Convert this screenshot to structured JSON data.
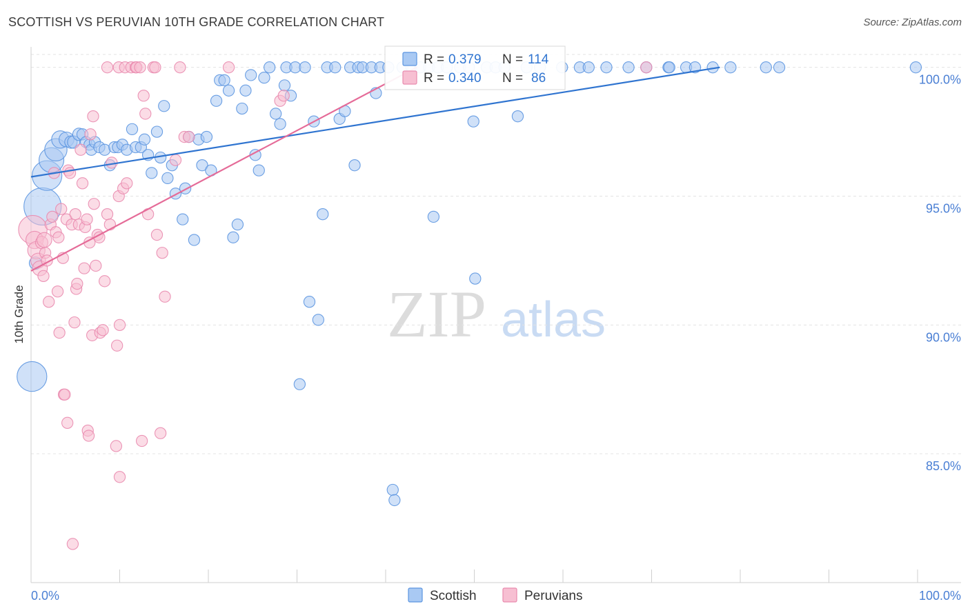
{
  "header": {
    "title": "SCOTTISH VS PERUVIAN 10TH GRADE CORRELATION CHART",
    "source": "Source: ZipAtlas.com"
  },
  "watermark": {
    "zip": "ZIP",
    "atlas": "atlas"
  },
  "legend_box": {
    "rows": [
      {
        "r_label": "R =",
        "r_value": "0.379",
        "n_label": "N =",
        "n_value": "114",
        "color": "#6fa8f0"
      },
      {
        "r_label": "R =",
        "r_value": "0.340",
        "n_label": "N =",
        "n_value": "86",
        "color": "#f4a0bd"
      }
    ]
  },
  "bottom_legend": [
    {
      "label": "Scottish",
      "color": "#6fa8f0"
    },
    {
      "label": "Peruvians",
      "color": "#f4a0bd"
    }
  ],
  "colors": {
    "scottish_fill": "#a9c9f3",
    "scottish_stroke": "#5b95e0",
    "scottish_line": "#2f74d0",
    "peruvian_fill": "#f7bfd2",
    "peruvian_stroke": "#e98aae",
    "peruvian_line": "#e56b98",
    "tick_text": "#4a7fd4",
    "grid": "#e3e3e3"
  },
  "chart_data": {
    "type": "scatter",
    "title": "SCOTTISH VS PERUVIAN 10TH GRADE CORRELATION CHART",
    "xlabel": "",
    "ylabel": "10th Grade",
    "xlim": [
      0,
      100
    ],
    "ylim": [
      80.0,
      100.5
    ],
    "x_tick_labels": [
      "0.0%",
      "100.0%"
    ],
    "y_ticks": [
      85,
      90,
      95,
      100
    ],
    "y_tick_labels": [
      "85.0%",
      "90.0%",
      "95.0%",
      "100.0%"
    ],
    "grid": true,
    "legend_position": "top-center",
    "series": [
      {
        "name": "Scottish",
        "r": 0.379,
        "n": 114,
        "trend": {
          "x": [
            0,
            77.7
          ],
          "y": [
            95.75,
            100.0
          ]
        },
        "points": [
          [
            0.1,
            88.0,
            2.4
          ],
          [
            1.3,
            94.6,
            3.0
          ],
          [
            1.8,
            95.8,
            2.4
          ],
          [
            2.3,
            96.4,
            2.0
          ],
          [
            2.8,
            96.8,
            1.8
          ],
          [
            3.3,
            97.2,
            1.4
          ],
          [
            4.0,
            97.2,
            1.2
          ],
          [
            4.5,
            97.1,
            1.0
          ],
          [
            4.8,
            97.1,
            1.0
          ],
          [
            5.4,
            97.4,
            1.0
          ],
          [
            5.8,
            97.4,
            0.9
          ],
          [
            6.2,
            97.1,
            0.9
          ],
          [
            6.6,
            97.0,
            0.9
          ],
          [
            6.8,
            96.8,
            0.9
          ],
          [
            7.2,
            97.1,
            0.9
          ],
          [
            7.7,
            96.9,
            0.9
          ],
          [
            8.3,
            96.8,
            0.9
          ],
          [
            8.9,
            96.2,
            0.9
          ],
          [
            9.4,
            96.9,
            0.9
          ],
          [
            9.8,
            96.9,
            0.9
          ],
          [
            10.3,
            97.0,
            0.9
          ],
          [
            10.8,
            96.8,
            0.9
          ],
          [
            11.4,
            97.6,
            0.9
          ],
          [
            11.8,
            96.9,
            0.9
          ],
          [
            12.4,
            96.9,
            0.9
          ],
          [
            12.8,
            97.2,
            0.9
          ],
          [
            13.2,
            96.6,
            0.9
          ],
          [
            13.6,
            95.9,
            0.9
          ],
          [
            14.2,
            97.5,
            0.9
          ],
          [
            14.6,
            96.5,
            0.9
          ],
          [
            15.0,
            98.5,
            0.9
          ],
          [
            15.4,
            95.7,
            0.9
          ],
          [
            15.9,
            96.2,
            0.9
          ],
          [
            16.3,
            95.1,
            0.9
          ],
          [
            17.1,
            94.1,
            0.9
          ],
          [
            17.4,
            95.3,
            0.9
          ],
          [
            17.8,
            97.3,
            0.9
          ],
          [
            18.4,
            93.3,
            0.9
          ],
          [
            18.9,
            97.2,
            0.9
          ],
          [
            19.3,
            96.2,
            0.9
          ],
          [
            19.8,
            97.3,
            0.9
          ],
          [
            20.3,
            96.0,
            0.9
          ],
          [
            20.9,
            98.7,
            0.9
          ],
          [
            21.3,
            99.5,
            0.9
          ],
          [
            21.8,
            99.5,
            0.9
          ],
          [
            22.3,
            99.1,
            0.9
          ],
          [
            22.8,
            93.4,
            0.9
          ],
          [
            23.3,
            93.9,
            0.9
          ],
          [
            23.8,
            98.4,
            0.9
          ],
          [
            24.2,
            99.1,
            0.9
          ],
          [
            24.8,
            99.7,
            0.9
          ],
          [
            25.3,
            96.6,
            0.9
          ],
          [
            25.7,
            96.0,
            0.9
          ],
          [
            26.3,
            99.6,
            0.9
          ],
          [
            26.9,
            100.0,
            0.9
          ],
          [
            27.6,
            98.2,
            0.9
          ],
          [
            28.1,
            97.8,
            0.9
          ],
          [
            28.6,
            99.3,
            0.9
          ],
          [
            28.8,
            100.0,
            0.9
          ],
          [
            29.3,
            98.9,
            0.9
          ],
          [
            29.8,
            100.0,
            0.9
          ],
          [
            30.3,
            87.7,
            0.9
          ],
          [
            30.9,
            100.0,
            0.9
          ],
          [
            31.4,
            90.9,
            0.9
          ],
          [
            31.9,
            97.9,
            0.9
          ],
          [
            32.4,
            90.2,
            0.9
          ],
          [
            32.9,
            94.3,
            0.9
          ],
          [
            33.4,
            100.0,
            0.9
          ],
          [
            34.3,
            100.0,
            0.9
          ],
          [
            34.8,
            98.0,
            0.9
          ],
          [
            35.4,
            98.3,
            0.9
          ],
          [
            36.0,
            100.0,
            0.9
          ],
          [
            36.5,
            96.2,
            0.9
          ],
          [
            36.9,
            100.0,
            0.9
          ],
          [
            37.4,
            100.0,
            0.9
          ],
          [
            38.4,
            100.0,
            0.9
          ],
          [
            38.9,
            99.0,
            0.9
          ],
          [
            39.4,
            100.0,
            0.9
          ],
          [
            40.3,
            100.0,
            0.9
          ],
          [
            40.8,
            83.6,
            0.9
          ],
          [
            41.0,
            83.2,
            0.9
          ],
          [
            41.9,
            100.0,
            0.9
          ],
          [
            42.9,
            100.0,
            0.9
          ],
          [
            43.9,
            100.0,
            0.9
          ],
          [
            44.9,
            100.0,
            0.9
          ],
          [
            45.4,
            94.2,
            0.9
          ],
          [
            45.9,
            100.0,
            0.9
          ],
          [
            46.9,
            100.0,
            0.9
          ],
          [
            48.4,
            100.0,
            0.9
          ],
          [
            49.4,
            100.0,
            0.9
          ],
          [
            49.9,
            97.9,
            0.9
          ],
          [
            50.1,
            91.8,
            0.9
          ],
          [
            51.4,
            100.0,
            0.9
          ],
          [
            52.4,
            100.0,
            0.9
          ],
          [
            53.4,
            100.0,
            0.9
          ],
          [
            54.9,
            98.1,
            0.9
          ],
          [
            55.9,
            100.0,
            0.9
          ],
          [
            57.4,
            100.0,
            0.9
          ],
          [
            59.9,
            100.0,
            0.9
          ],
          [
            61.9,
            100.0,
            0.9
          ],
          [
            62.9,
            100.0,
            0.9
          ],
          [
            64.9,
            100.0,
            0.9
          ],
          [
            67.4,
            100.0,
            0.9
          ],
          [
            69.4,
            100.0,
            0.9
          ],
          [
            71.9,
            100.0,
            0.9
          ],
          [
            72.0,
            100.0,
            0.9
          ],
          [
            73.9,
            100.0,
            0.9
          ],
          [
            74.9,
            100.0,
            0.9
          ],
          [
            76.9,
            100.0,
            0.9
          ],
          [
            78.9,
            100.0,
            0.9
          ],
          [
            82.9,
            100.0,
            0.9
          ],
          [
            84.4,
            100.0,
            0.9
          ],
          [
            99.8,
            100.0,
            0.9
          ],
          [
            0.5,
            92.4,
            1.0
          ]
        ]
      },
      {
        "name": "Peruvians",
        "r": 0.34,
        "n": 86,
        "trend": {
          "x": [
            0,
            43.5
          ],
          "y": [
            92.1,
            100.0
          ]
        },
        "points": [
          [
            0.2,
            93.7,
            2.3
          ],
          [
            0.4,
            93.3,
            1.4
          ],
          [
            0.6,
            92.9,
            1.4
          ],
          [
            0.8,
            92.5,
            1.2
          ],
          [
            1.0,
            92.2,
            1.2
          ],
          [
            1.2,
            93.2,
            1.0
          ],
          [
            1.4,
            91.9,
            0.9
          ],
          [
            1.6,
            92.8,
            0.9
          ],
          [
            1.8,
            92.5,
            0.9
          ],
          [
            2.0,
            90.9,
            0.9
          ],
          [
            2.2,
            93.9,
            0.9
          ],
          [
            2.4,
            94.2,
            0.9
          ],
          [
            2.8,
            93.6,
            0.9
          ],
          [
            3.0,
            91.3,
            0.9
          ],
          [
            3.1,
            93.4,
            0.9
          ],
          [
            3.2,
            89.7,
            0.9
          ],
          [
            3.4,
            94.5,
            0.9
          ],
          [
            3.6,
            92.6,
            0.9
          ],
          [
            3.7,
            87.3,
            0.9
          ],
          [
            3.8,
            87.3,
            0.9
          ],
          [
            4.0,
            94.1,
            0.9
          ],
          [
            4.1,
            86.2,
            0.9
          ],
          [
            4.2,
            96.0,
            0.9
          ],
          [
            4.4,
            95.9,
            0.9
          ],
          [
            4.6,
            93.9,
            0.9
          ],
          [
            4.7,
            81.5,
            0.9
          ],
          [
            4.9,
            90.1,
            0.9
          ],
          [
            5.0,
            94.3,
            0.9
          ],
          [
            5.1,
            91.4,
            0.9
          ],
          [
            5.2,
            91.6,
            0.9
          ],
          [
            5.4,
            93.9,
            0.9
          ],
          [
            5.6,
            96.8,
            0.9
          ],
          [
            5.8,
            95.5,
            0.9
          ],
          [
            6.0,
            92.2,
            0.9
          ],
          [
            6.1,
            93.8,
            0.9
          ],
          [
            6.3,
            94.1,
            0.9
          ],
          [
            6.4,
            85.9,
            0.9
          ],
          [
            6.5,
            85.7,
            0.9
          ],
          [
            6.6,
            93.2,
            0.9
          ],
          [
            6.7,
            97.4,
            0.9
          ],
          [
            6.9,
            89.6,
            0.9
          ],
          [
            7.0,
            98.1,
            0.9
          ],
          [
            7.1,
            94.7,
            0.9
          ],
          [
            7.3,
            92.3,
            0.9
          ],
          [
            7.5,
            93.5,
            0.9
          ],
          [
            7.7,
            93.4,
            0.9
          ],
          [
            7.8,
            89.7,
            0.9
          ],
          [
            8.1,
            89.8,
            0.9
          ],
          [
            8.3,
            91.7,
            0.9
          ],
          [
            8.6,
            94.3,
            0.9
          ],
          [
            8.6,
            100.0,
            0.9
          ],
          [
            8.9,
            93.9,
            0.9
          ],
          [
            9.1,
            96.3,
            0.9
          ],
          [
            9.6,
            85.3,
            0.9
          ],
          [
            9.7,
            89.2,
            0.9
          ],
          [
            9.9,
            100.0,
            0.9
          ],
          [
            9.9,
            95.0,
            0.9
          ],
          [
            10.0,
            90.0,
            0.9
          ],
          [
            10.0,
            84.1,
            0.9
          ],
          [
            10.4,
            95.3,
            0.9
          ],
          [
            10.6,
            100.0,
            0.9
          ],
          [
            10.8,
            95.5,
            0.9
          ],
          [
            11.3,
            100.0,
            0.9
          ],
          [
            11.8,
            100.0,
            0.9
          ],
          [
            11.9,
            100.0,
            0.9
          ],
          [
            12.3,
            100.0,
            0.9
          ],
          [
            12.5,
            85.5,
            0.9
          ],
          [
            12.7,
            98.9,
            0.9
          ],
          [
            12.9,
            98.2,
            0.9
          ],
          [
            13.2,
            94.3,
            0.9
          ],
          [
            13.8,
            100.0,
            0.9
          ],
          [
            14.0,
            100.0,
            0.9
          ],
          [
            14.2,
            93.5,
            0.9
          ],
          [
            14.6,
            85.8,
            0.9
          ],
          [
            14.8,
            92.8,
            0.9
          ],
          [
            15.1,
            91.1,
            0.9
          ],
          [
            16.3,
            96.4,
            0.9
          ],
          [
            16.8,
            100.0,
            0.9
          ],
          [
            17.3,
            97.3,
            0.9
          ],
          [
            17.8,
            97.3,
            0.9
          ],
          [
            22.3,
            100.0,
            0.9
          ],
          [
            28.1,
            98.7,
            0.9
          ],
          [
            28.5,
            98.9,
            0.9
          ],
          [
            69.4,
            100.0,
            0.9
          ],
          [
            1.5,
            93.3,
            1.2
          ],
          [
            2.6,
            95.9,
            0.9
          ]
        ]
      }
    ]
  }
}
